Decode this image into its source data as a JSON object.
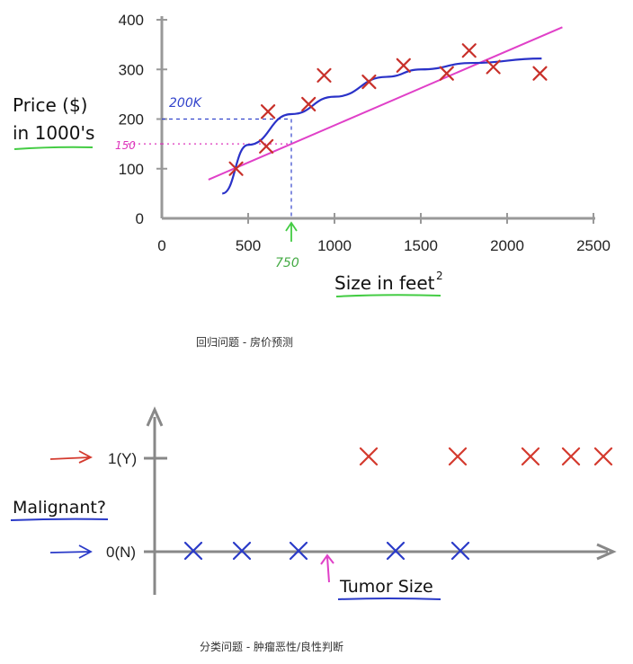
{
  "chart_data": [
    {
      "type": "scatter",
      "caption": "回归问题 - 房价预测",
      "ylabel_line1": "Price ($)",
      "ylabel_line2": "in 1000's",
      "xlabel": "Size in feet",
      "xlabel_sup": "2",
      "xlim": [
        0,
        2500
      ],
      "ylim": [
        0,
        400
      ],
      "xticks": [
        0,
        500,
        1000,
        1500,
        2000,
        2500
      ],
      "yticks": [
        0,
        100,
        200,
        300,
        400
      ],
      "points": [
        {
          "x": 430,
          "y": 100
        },
        {
          "x": 615,
          "y": 215
        },
        {
          "x": 605,
          "y": 145
        },
        {
          "x": 850,
          "y": 230
        },
        {
          "x": 940,
          "y": 288
        },
        {
          "x": 1200,
          "y": 275
        },
        {
          "x": 1400,
          "y": 308
        },
        {
          "x": 1650,
          "y": 292
        },
        {
          "x": 1780,
          "y": 338
        },
        {
          "x": 1920,
          "y": 305
        },
        {
          "x": 2190,
          "y": 292
        }
      ],
      "straight_fit": [
        {
          "x": 270,
          "y": 78
        },
        {
          "x": 2320,
          "y": 385
        }
      ],
      "curve_fit": [
        {
          "x": 350,
          "y": 50
        },
        {
          "x": 500,
          "y": 148
        },
        {
          "x": 750,
          "y": 210
        },
        {
          "x": 1000,
          "y": 245
        },
        {
          "x": 1300,
          "y": 285
        },
        {
          "x": 1500,
          "y": 300
        },
        {
          "x": 1800,
          "y": 313
        },
        {
          "x": 2200,
          "y": 322
        }
      ],
      "annotations": {
        "x_marker": {
          "x": 750,
          "label": "750"
        },
        "y_markers": [
          {
            "y": 200,
            "label": "200K",
            "color": "#3344cc"
          },
          {
            "y": 150,
            "label": "150",
            "color": "#dd33bb"
          }
        ]
      },
      "colors": {
        "points": "#c8302a",
        "straight": "#e040c8",
        "curve": "#2a32c8",
        "axis": "#999999",
        "highlight": "#44cc44"
      }
    },
    {
      "type": "scatter",
      "caption": "分类问题 - 肿瘤恶性/良性判断",
      "ylabel": "Malignant?",
      "xlabel": "Tumor Size",
      "yticks": [
        "1(Y)",
        "0(N)"
      ],
      "malignant": [
        {
          "x": 1.1
        },
        {
          "x": 1.65
        },
        {
          "x": 2.1
        },
        {
          "x": 2.35
        },
        {
          "x": 2.55
        }
      ],
      "benign": [
        {
          "x": 0.25
        },
        {
          "x": 0.55
        },
        {
          "x": 0.9
        },
        {
          "x": 1.5
        },
        {
          "x": 1.9
        }
      ],
      "threshold_x": 1.0,
      "colors": {
        "malignant": "#d43a2e",
        "benign": "#2a3ac8",
        "arrow_top": "#d43a2e",
        "arrow_bottom": "#2a3ac8",
        "threshold": "#e040c8",
        "axis": "#888888",
        "underline_red": "#2a3ac8",
        "underline_xl": "#2a3ac8"
      }
    }
  ]
}
